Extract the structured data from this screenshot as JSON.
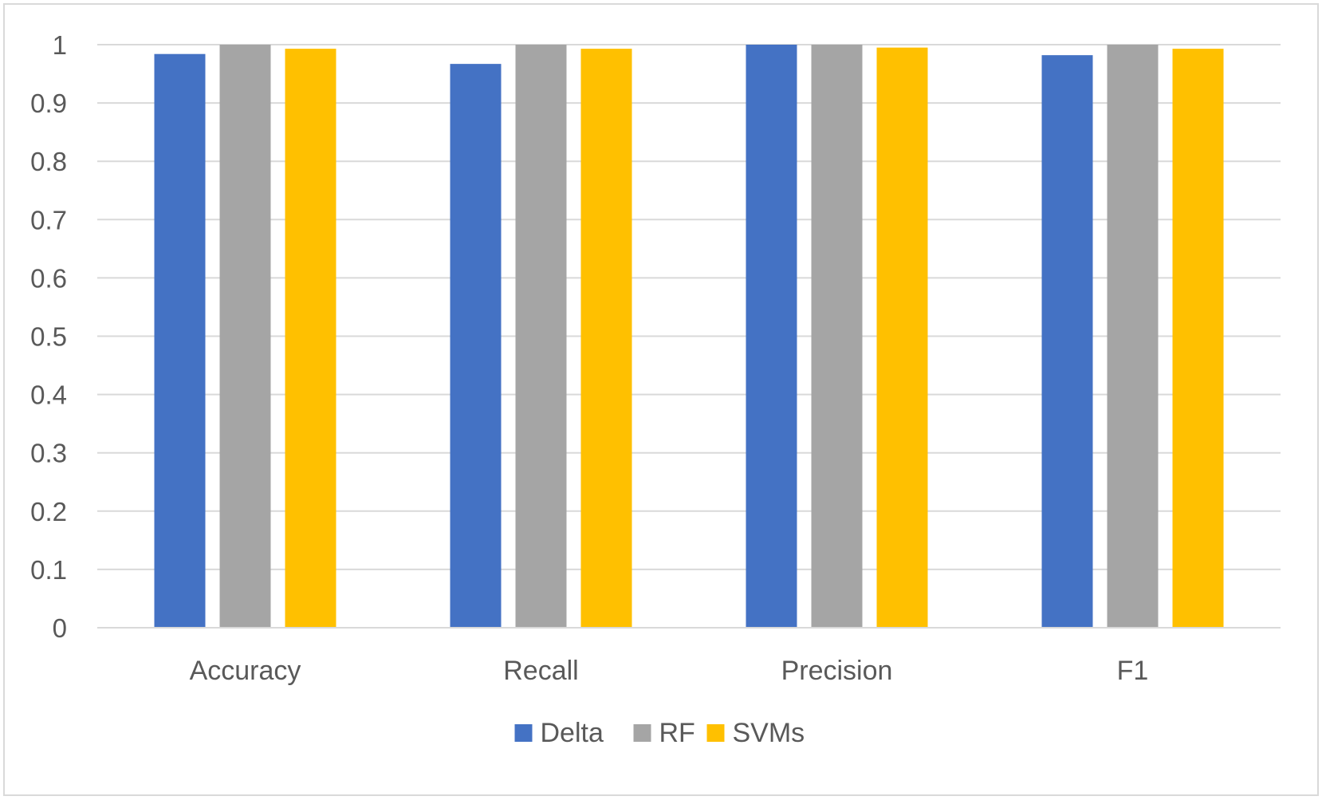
{
  "chart_data": {
    "type": "bar",
    "title": "",
    "xlabel": "",
    "ylabel": "",
    "categories": [
      "Accuracy",
      "Recall",
      "Precision",
      "F1"
    ],
    "series": [
      {
        "name": "Delta",
        "color": "#4472C4",
        "values": [
          0.984,
          0.967,
          1.0,
          0.982
        ]
      },
      {
        "name": "RF",
        "color": "#A5A5A5",
        "values": [
          1.0,
          1.0,
          1.0,
          1.0
        ]
      },
      {
        "name": "SVMs",
        "color": "#FFC000",
        "values": [
          0.993,
          0.993,
          0.995,
          0.993
        ]
      }
    ],
    "ylim": [
      0,
      1
    ],
    "yticks": [
      "0",
      "0.1",
      "0.2",
      "0.3",
      "0.4",
      "0.5",
      "0.6",
      "0.7",
      "0.8",
      "0.9",
      "1"
    ],
    "grid": true,
    "legend_position": "bottom"
  }
}
